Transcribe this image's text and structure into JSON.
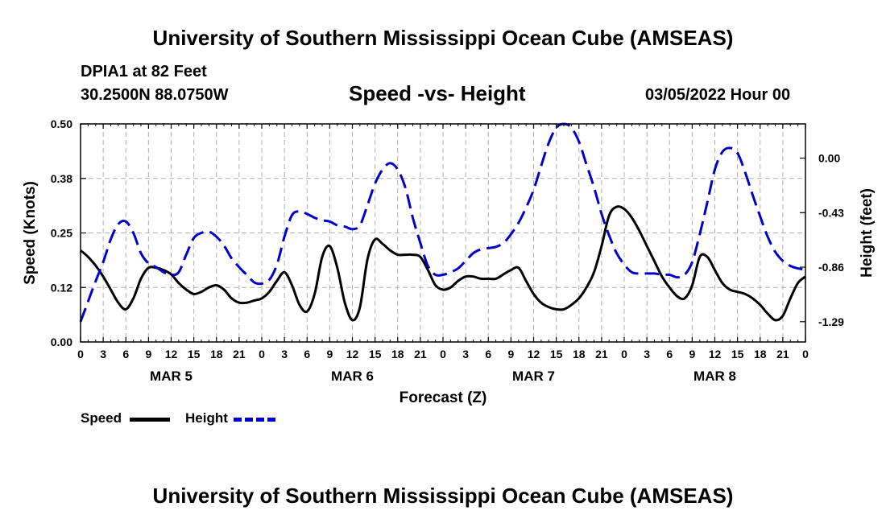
{
  "page": {
    "title": "University of Southern Mississippi Ocean Cube (AMSEAS)",
    "footer_title": "University of Southern Mississippi Ocean Cube (AMSEAS)",
    "station": "DPIA1 at 82 Feet",
    "location": "30.2500N  88.0750W",
    "subtitle": "Speed -vs- Height",
    "datetime": "03/05/2022 Hour 00"
  },
  "chart_data": {
    "type": "line",
    "title": "Speed -vs- Height",
    "xlabel": "Forecast (Z)",
    "ylabel": "Speed (Knots)",
    "y2label": "Height (feet)",
    "x_hour_range": [
      0,
      96
    ],
    "ylim": [
      0.0,
      0.5
    ],
    "y2lim": [
      -1.45,
      0.27
    ],
    "y_ticks": [
      "0.00",
      "0.12",
      "0.25",
      "0.38",
      "0.50"
    ],
    "y_tick_values": [
      0.0,
      0.125,
      0.25,
      0.375,
      0.5
    ],
    "y2_ticks": [
      "0.00",
      "-0.43",
      "-0.86",
      "-1.29"
    ],
    "y2_tick_values": [
      0.0,
      -0.43,
      -0.86,
      -1.29
    ],
    "x_tick_labels": [
      "0",
      "3",
      "6",
      "9",
      "12",
      "15",
      "18",
      "21",
      "0",
      "3",
      "6",
      "9",
      "12",
      "15",
      "18",
      "21",
      "0",
      "3",
      "6",
      "9",
      "12",
      "15",
      "18",
      "21",
      "0",
      "3",
      "6",
      "9",
      "12",
      "15",
      "18",
      "21",
      "0"
    ],
    "day_labels": [
      {
        "label": "MAR 5",
        "hour": 12
      },
      {
        "label": "MAR 6",
        "hour": 36
      },
      {
        "label": "MAR 7",
        "hour": 60
      },
      {
        "label": "MAR 8",
        "hour": 84
      }
    ],
    "grid": true,
    "legend_position": "bottom-left",
    "series": [
      {
        "name": "Speed",
        "axis": "left",
        "color": "#000000",
        "style": "solid",
        "x": [
          0,
          1,
          2,
          3,
          4,
          5,
          6,
          7,
          8,
          9,
          10,
          11,
          12,
          13,
          14,
          15,
          16,
          17,
          18,
          19,
          20,
          21,
          22,
          23,
          24,
          25,
          26,
          27,
          28,
          29,
          30,
          31,
          32,
          33,
          34,
          35,
          36,
          37,
          38,
          39,
          40,
          41,
          42,
          43,
          44,
          45,
          46,
          47,
          48,
          49,
          50,
          51,
          52,
          53,
          54,
          55,
          56,
          57,
          58,
          59,
          60,
          61,
          62,
          63,
          64,
          65,
          66,
          67,
          68,
          69,
          70,
          71,
          72,
          73,
          74,
          75,
          76,
          77,
          78,
          79,
          80,
          81,
          82,
          83,
          84,
          85,
          86,
          87,
          88,
          89,
          90,
          91,
          92,
          93,
          94,
          95,
          96
        ],
        "values": [
          0.21,
          0.195,
          0.175,
          0.15,
          0.12,
          0.09,
          0.075,
          0.1,
          0.145,
          0.17,
          0.17,
          0.165,
          0.155,
          0.135,
          0.12,
          0.11,
          0.115,
          0.125,
          0.13,
          0.12,
          0.1,
          0.09,
          0.09,
          0.095,
          0.1,
          0.115,
          0.14,
          0.16,
          0.13,
          0.085,
          0.07,
          0.11,
          0.195,
          0.22,
          0.17,
          0.09,
          0.05,
          0.08,
          0.19,
          0.235,
          0.225,
          0.21,
          0.2,
          0.2,
          0.2,
          0.195,
          0.165,
          0.13,
          0.12,
          0.125,
          0.14,
          0.15,
          0.15,
          0.145,
          0.145,
          0.145,
          0.155,
          0.165,
          0.17,
          0.14,
          0.11,
          0.09,
          0.08,
          0.075,
          0.075,
          0.085,
          0.1,
          0.125,
          0.16,
          0.22,
          0.29,
          0.31,
          0.305,
          0.285,
          0.255,
          0.22,
          0.185,
          0.15,
          0.125,
          0.105,
          0.1,
          0.13,
          0.195,
          0.195,
          0.165,
          0.135,
          0.12,
          0.115,
          0.11,
          0.1,
          0.085,
          0.065,
          0.05,
          0.06,
          0.1,
          0.135,
          0.15
        ]
      },
      {
        "name": "Height",
        "axis": "right",
        "color": "#0000cc",
        "style": "dashed",
        "x": [
          0,
          1,
          2,
          3,
          4,
          5,
          6,
          7,
          8,
          9,
          10,
          11,
          12,
          13,
          14,
          15,
          16,
          17,
          18,
          19,
          20,
          21,
          22,
          23,
          24,
          25,
          26,
          27,
          28,
          29,
          30,
          31,
          32,
          33,
          34,
          35,
          36,
          37,
          38,
          39,
          40,
          41,
          42,
          43,
          44,
          45,
          46,
          47,
          48,
          49,
          50,
          51,
          52,
          53,
          54,
          55,
          56,
          57,
          58,
          59,
          60,
          61,
          62,
          63,
          64,
          65,
          66,
          67,
          68,
          69,
          70,
          71,
          72,
          73,
          74,
          75,
          76,
          77,
          78,
          79,
          80,
          81,
          82,
          83,
          84,
          85,
          86,
          87,
          88,
          89,
          90,
          91,
          92,
          93,
          94,
          95,
          96
        ],
        "values": [
          -1.29,
          -1.13,
          -0.97,
          -0.82,
          -0.64,
          -0.52,
          -0.5,
          -0.59,
          -0.75,
          -0.83,
          -0.86,
          -0.9,
          -0.92,
          -0.9,
          -0.76,
          -0.63,
          -0.59,
          -0.58,
          -0.62,
          -0.69,
          -0.79,
          -0.86,
          -0.92,
          -0.98,
          -0.99,
          -0.96,
          -0.84,
          -0.62,
          -0.45,
          -0.42,
          -0.44,
          -0.47,
          -0.49,
          -0.5,
          -0.53,
          -0.54,
          -0.56,
          -0.53,
          -0.37,
          -0.2,
          -0.09,
          -0.04,
          -0.09,
          -0.23,
          -0.47,
          -0.67,
          -0.85,
          -0.92,
          -0.92,
          -0.9,
          -0.87,
          -0.81,
          -0.75,
          -0.72,
          -0.71,
          -0.7,
          -0.67,
          -0.6,
          -0.51,
          -0.39,
          -0.25,
          -0.06,
          0.12,
          0.24,
          0.27,
          0.24,
          0.13,
          -0.05,
          -0.23,
          -0.44,
          -0.61,
          -0.75,
          -0.84,
          -0.9,
          -0.91,
          -0.91,
          -0.91,
          -0.92,
          -0.92,
          -0.94,
          -0.92,
          -0.82,
          -0.6,
          -0.35,
          -0.09,
          0.05,
          0.08,
          0.04,
          -0.11,
          -0.29,
          -0.46,
          -0.62,
          -0.74,
          -0.81,
          -0.85,
          -0.87,
          -0.88
        ]
      }
    ]
  }
}
